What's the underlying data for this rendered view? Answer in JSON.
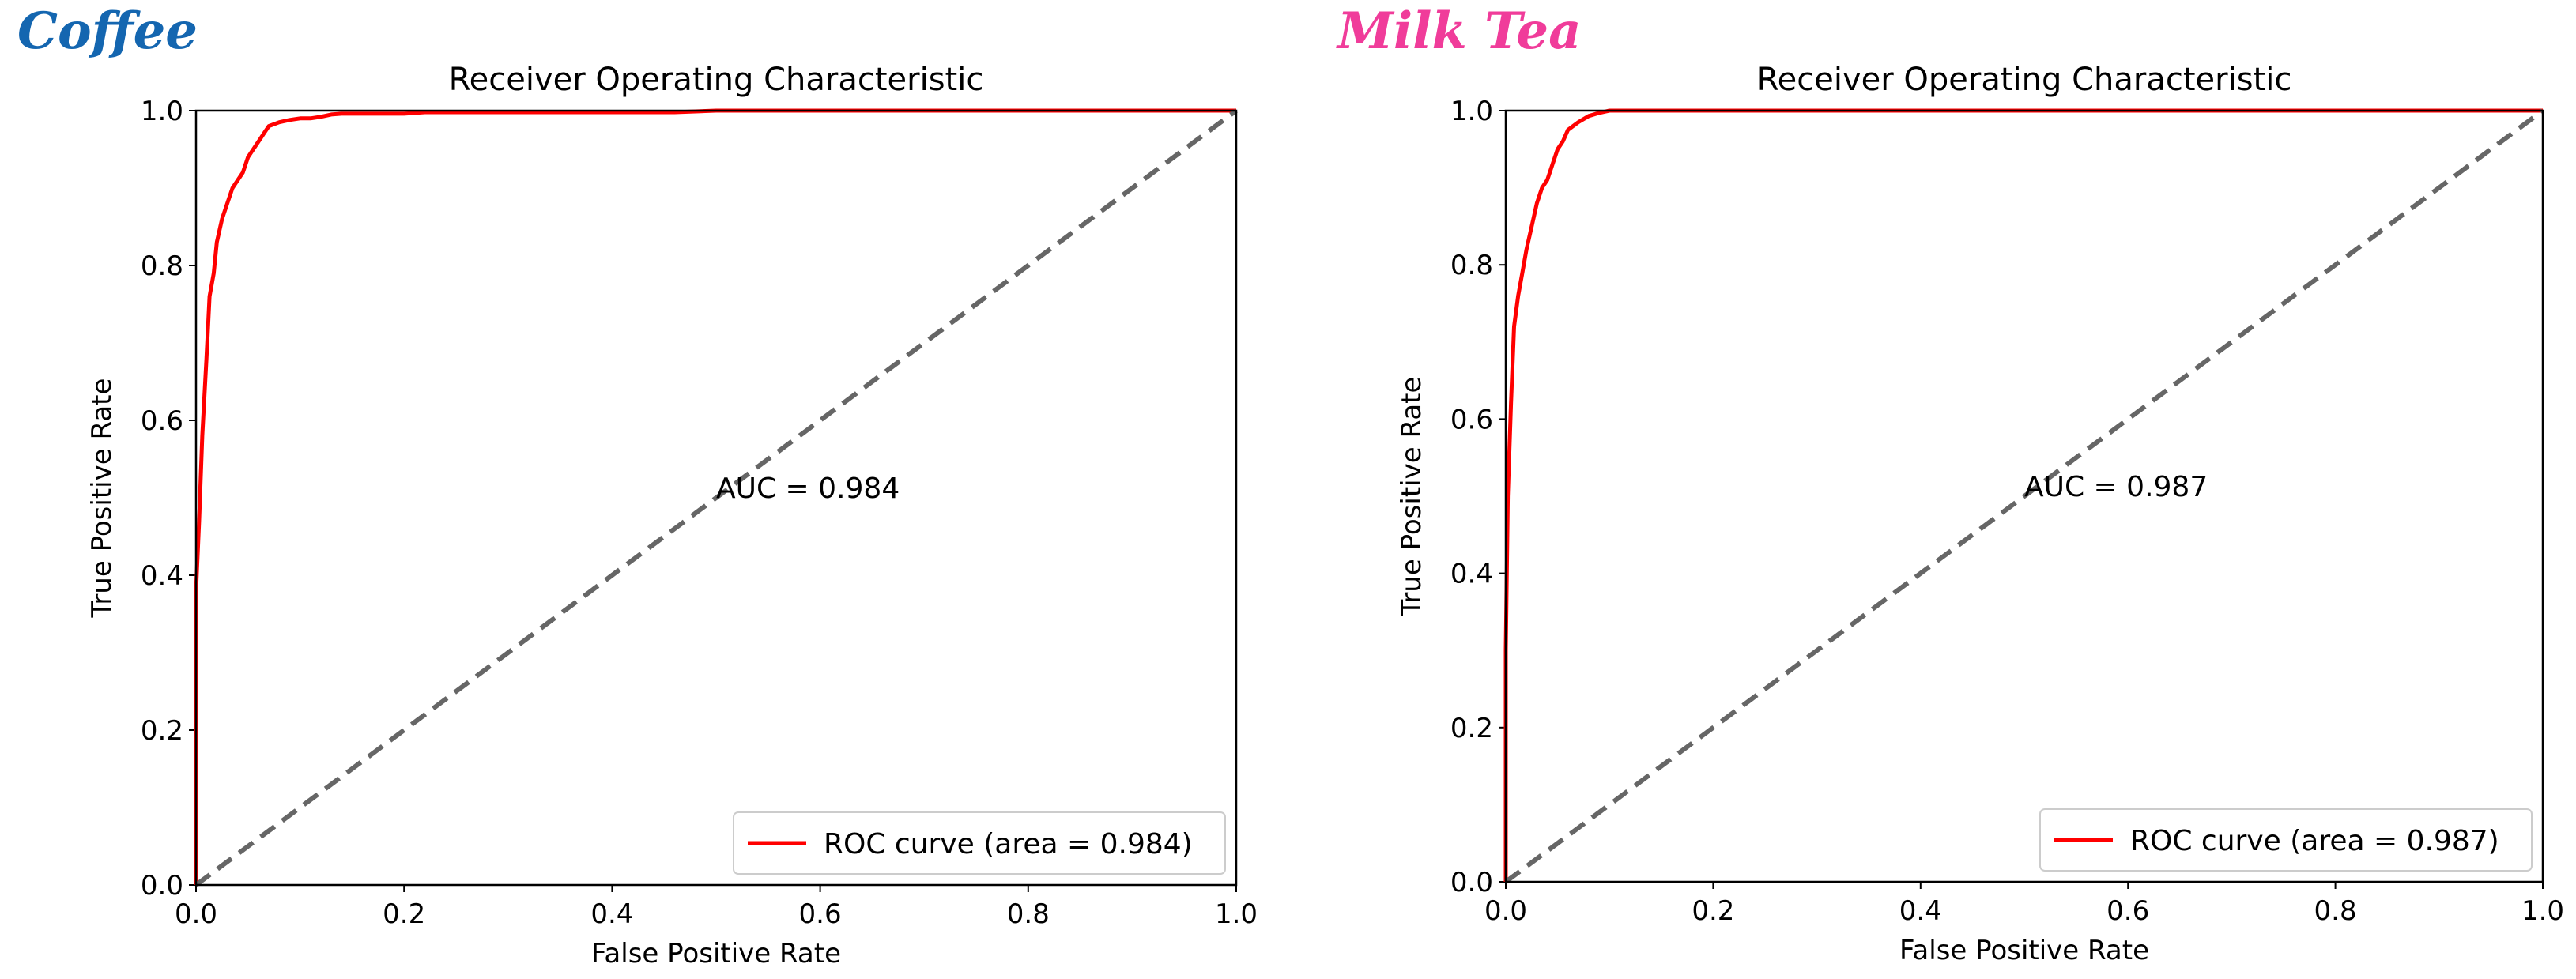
{
  "panels": [
    {
      "label": "Coffee",
      "color": "#1466b0"
    },
    {
      "label": "Milk Tea",
      "color": "#f03c9a"
    }
  ],
  "chart_data": [
    {
      "type": "line",
      "title": "Receiver Operating Characteristic",
      "xlabel": "False Positive Rate",
      "ylabel": "True Positive Rate",
      "xlim": [
        0.0,
        1.0
      ],
      "ylim": [
        0.0,
        1.0
      ],
      "xticks": [
        "0.0",
        "0.2",
        "0.4",
        "0.6",
        "0.8",
        "1.0"
      ],
      "yticks": [
        "0.0",
        "0.2",
        "0.4",
        "0.6",
        "0.8",
        "1.0"
      ],
      "grid": false,
      "annotation": {
        "text": "AUC = 0.984",
        "x": 0.5,
        "y": 0.5
      },
      "legend_position": "lower right",
      "series": [
        {
          "name": "ROC curve (area = 0.984)",
          "color": "#ff0000",
          "style": "solid",
          "x": [
            0.0,
            0.0,
            0.003,
            0.006,
            0.01,
            0.013,
            0.017,
            0.02,
            0.025,
            0.03,
            0.035,
            0.04,
            0.045,
            0.05,
            0.055,
            0.06,
            0.065,
            0.07,
            0.08,
            0.09,
            0.1,
            0.11,
            0.12,
            0.13,
            0.14,
            0.2,
            0.22,
            0.3,
            0.46,
            0.5,
            1.0
          ],
          "y": [
            0.0,
            0.38,
            0.47,
            0.58,
            0.68,
            0.76,
            0.79,
            0.83,
            0.86,
            0.88,
            0.9,
            0.91,
            0.92,
            0.94,
            0.95,
            0.96,
            0.97,
            0.98,
            0.985,
            0.988,
            0.99,
            0.99,
            0.992,
            0.995,
            0.996,
            0.996,
            0.998,
            0.998,
            0.998,
            1.0,
            1.0
          ]
        },
        {
          "name": "",
          "color": "#666666",
          "style": "dashed",
          "x": [
            0.0,
            1.0
          ],
          "y": [
            0.0,
            1.0
          ]
        }
      ]
    },
    {
      "type": "line",
      "title": "Receiver Operating Characteristic",
      "xlabel": "False Positive Rate",
      "ylabel": "True Positive Rate",
      "xlim": [
        0.0,
        1.0
      ],
      "ylim": [
        0.0,
        1.0
      ],
      "xticks": [
        "0.0",
        "0.2",
        "0.4",
        "0.6",
        "0.8",
        "1.0"
      ],
      "yticks": [
        "0.0",
        "0.2",
        "0.4",
        "0.6",
        "0.8",
        "1.0"
      ],
      "grid": false,
      "annotation": {
        "text": "AUC = 0.987",
        "x": 0.5,
        "y": 0.5
      },
      "legend_position": "lower right",
      "series": [
        {
          "name": "ROC curve (area = 0.987)",
          "color": "#ff0000",
          "style": "solid",
          "x": [
            0.0,
            0.0,
            0.002,
            0.005,
            0.008,
            0.012,
            0.016,
            0.02,
            0.025,
            0.03,
            0.035,
            0.04,
            0.045,
            0.05,
            0.055,
            0.06,
            0.07,
            0.08,
            0.09,
            0.1,
            0.15,
            0.3,
            0.6,
            1.0
          ],
          "y": [
            0.0,
            0.3,
            0.5,
            0.62,
            0.72,
            0.76,
            0.79,
            0.82,
            0.85,
            0.88,
            0.9,
            0.91,
            0.93,
            0.95,
            0.96,
            0.975,
            0.985,
            0.993,
            0.997,
            1.0,
            1.0,
            1.0,
            1.0,
            1.0
          ]
        },
        {
          "name": "",
          "color": "#666666",
          "style": "dashed",
          "x": [
            0.0,
            1.0
          ],
          "y": [
            0.0,
            1.0
          ]
        }
      ]
    }
  ]
}
